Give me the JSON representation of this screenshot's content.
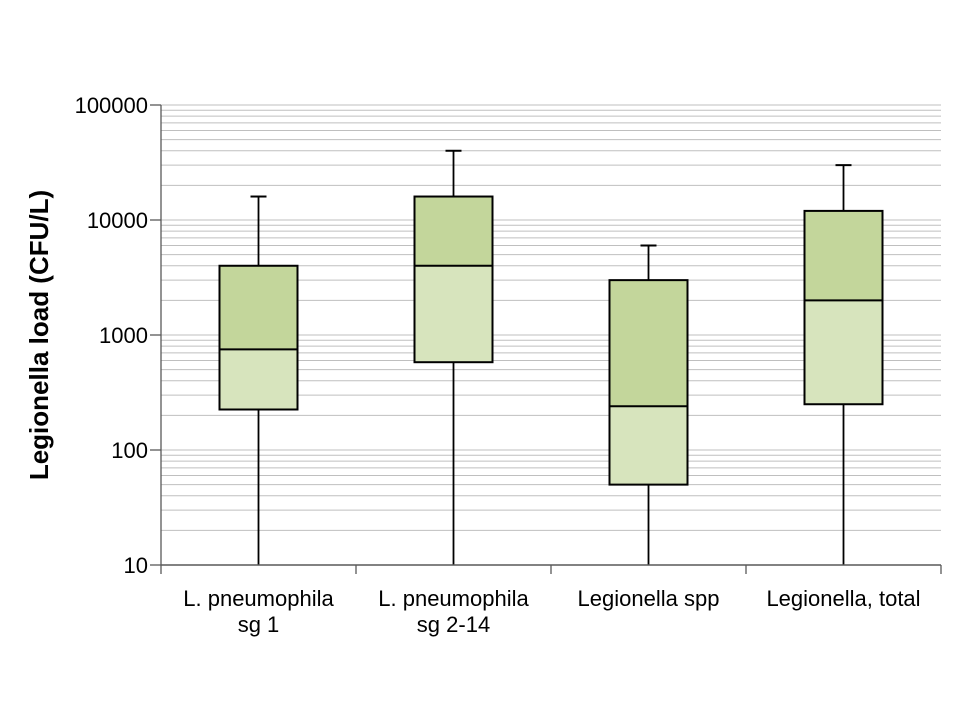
{
  "chart_data": {
    "type": "boxplot",
    "title": "",
    "ylabel": "Legionella load (CFU/L)",
    "xlabel": "",
    "y_scale": "log",
    "ylim": [
      10,
      100000
    ],
    "y_ticks": [
      10,
      100,
      1000,
      10000,
      100000
    ],
    "y_tick_labels": [
      "10",
      "100",
      "1000",
      "10000",
      "100000"
    ],
    "minor_gridlines": true,
    "legend": "none",
    "categories": [
      "L. pneumophila sg 1",
      "L. pneumophila sg 2-14",
      "Legionella spp",
      "Legionella, total"
    ],
    "category_label_lines": [
      [
        "L. pneumophila",
        "sg 1"
      ],
      [
        "L. pneumophila",
        "sg 2-14"
      ],
      [
        "Legionella spp"
      ],
      [
        "Legionella, total"
      ]
    ],
    "series": [
      {
        "name": "L. pneumophila sg 1",
        "min": 10,
        "q1": 225,
        "median": 750,
        "q3": 4000,
        "max": 16000
      },
      {
        "name": "L. pneumophila sg 2-14",
        "min": 10,
        "q1": 580,
        "median": 4000,
        "q3": 16000,
        "max": 40000
      },
      {
        "name": "Legionella spp",
        "min": 10,
        "q1": 50,
        "median": 240,
        "q3": 3000,
        "max": 6000
      },
      {
        "name": "Legionella, total",
        "min": 10,
        "q1": 250,
        "median": 2000,
        "q3": 12000,
        "max": 30000
      }
    ],
    "colors": {
      "box_upper_fill": "#c3d69b",
      "box_lower_fill": "#d7e4bd",
      "box_border": "#000000",
      "median_line": "#000000",
      "whisker": "#000000",
      "gridline": "#bfbfbf",
      "axis": "#595959",
      "text": "#000000",
      "background": "#ffffff"
    }
  }
}
